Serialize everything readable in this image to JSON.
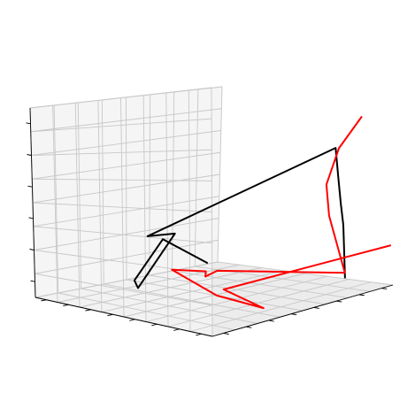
{
  "chart_data": {
    "type": "line3d",
    "title": "",
    "xlabel": "",
    "ylabel": "",
    "zlabel": "",
    "grid": true,
    "tick_labels": false,
    "ticks": {
      "x": 8,
      "y": 8,
      "z": 6
    },
    "series": [
      {
        "color": "#000000",
        "points": [
          [
            0.93,
            2.0,
            0.3
          ],
          [
            0.93,
            2.0,
            3.2
          ],
          [
            0.92,
            2.0,
            4.4
          ],
          [
            0.92,
            2.1,
            5.8
          ],
          [
            0.91,
            2.1,
            7.4
          ],
          [
            0.3,
            6.7,
            3.1
          ],
          [
            0.45,
            6.7,
            3.0
          ],
          [
            0.37,
            8.0,
            0.15
          ],
          [
            0.36,
            8.1,
            0.55
          ],
          [
            0.46,
            7.5,
            2.6
          ],
          [
            0.58,
            6.2,
            1.3
          ]
        ]
      },
      {
        "color": "#ff0000",
        "points": [
          [
            1.0,
            0.0,
            2.2
          ],
          [
            0.26,
            2.0,
            1.2
          ],
          [
            0.42,
            1.4,
            0.1
          ],
          [
            0.28,
            2.6,
            0.8
          ],
          [
            0.47,
            7.1,
            1.05
          ],
          [
            0.54,
            5.9,
            1.0
          ],
          [
            0.74,
            8.0,
            0.0
          ],
          [
            0.66,
            6.5,
            0.7
          ],
          [
            0.93,
            2.0,
            0.6
          ],
          [
            0.9,
            2.5,
            3.7
          ],
          [
            0.89,
            2.5,
            5.4
          ],
          [
            0.91,
            1.9,
            7.4
          ],
          [
            1.0,
            1.4,
            9.2
          ]
        ]
      }
    ]
  }
}
